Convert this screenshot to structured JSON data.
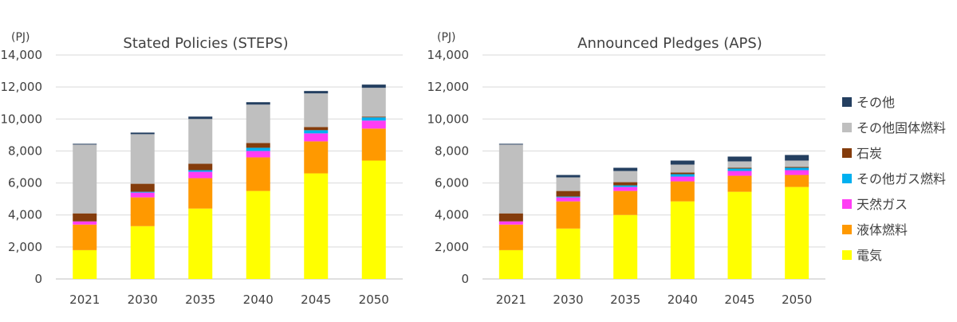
{
  "legend": [
    {
      "name": "その他",
      "color": "#243f60"
    },
    {
      "name": "その他固体燃料",
      "color": "#bfbfbf"
    },
    {
      "name": "石炭",
      "color": "#843c0c"
    },
    {
      "name": "その他ガス燃料",
      "color": "#00b0f0"
    },
    {
      "name": "天然ガス",
      "color": "#ff3df4"
    },
    {
      "name": "液体燃料",
      "color": "#ff9900"
    },
    {
      "name": "電気",
      "color": "#ffff00"
    }
  ],
  "chart_data": [
    {
      "type": "bar",
      "stacked": true,
      "title": "Stated Policies (STEPS)",
      "unit": "(PJ)",
      "categories": [
        "2021",
        "2030",
        "2035",
        "2040",
        "2045",
        "2050"
      ],
      "ylim": [
        0,
        14000
      ],
      "yticks": [
        "0",
        "2,000",
        "4,000",
        "6,000",
        "8,000",
        "10,000",
        "12,000",
        "14,000"
      ],
      "grid": true,
      "series": [
        {
          "name": "電気",
          "color": "#ffff00",
          "values": [
            1800,
            3300,
            4400,
            5500,
            6600,
            7400
          ]
        },
        {
          "name": "液体燃料",
          "color": "#ff9900",
          "values": [
            1600,
            1800,
            1900,
            2100,
            2000,
            2000
          ]
        },
        {
          "name": "天然ガス",
          "color": "#ff3df4",
          "values": [
            200,
            300,
            400,
            400,
            500,
            500
          ]
        },
        {
          "name": "その他ガス燃料",
          "color": "#00b0f0",
          "values": [
            0,
            50,
            100,
            200,
            200,
            200
          ]
        },
        {
          "name": "石炭",
          "color": "#843c0c",
          "values": [
            500,
            500,
            400,
            300,
            200,
            50
          ]
        },
        {
          "name": "その他固体燃料",
          "color": "#bfbfbf",
          "values": [
            4300,
            3100,
            2800,
            2400,
            2100,
            1800
          ]
        },
        {
          "name": "その他",
          "color": "#243f60",
          "values": [
            50,
            100,
            150,
            150,
            150,
            200
          ]
        }
      ]
    },
    {
      "type": "bar",
      "stacked": true,
      "title": "Announced Pledges (APS)",
      "unit": "(PJ)",
      "categories": [
        "2021",
        "2030",
        "2035",
        "2040",
        "2045",
        "2050"
      ],
      "ylim": [
        0,
        14000
      ],
      "yticks": [
        "0",
        "2,000",
        "4,000",
        "6,000",
        "8,000",
        "10,000",
        "12,000",
        "14,000"
      ],
      "grid": true,
      "series": [
        {
          "name": "電気",
          "color": "#ffff00",
          "values": [
            1800,
            3150,
            4000,
            4850,
            5450,
            5750
          ]
        },
        {
          "name": "液体燃料",
          "color": "#ff9900",
          "values": [
            1600,
            1700,
            1500,
            1250,
            1000,
            750
          ]
        },
        {
          "name": "天然ガス",
          "color": "#ff3df4",
          "values": [
            200,
            250,
            250,
            300,
            300,
            300
          ]
        },
        {
          "name": "その他ガス燃料",
          "color": "#00b0f0",
          "values": [
            0,
            50,
            100,
            150,
            150,
            150
          ]
        },
        {
          "name": "石炭",
          "color": "#843c0c",
          "values": [
            500,
            350,
            200,
            100,
            50,
            50
          ]
        },
        {
          "name": "その他固体燃料",
          "color": "#bfbfbf",
          "values": [
            4300,
            850,
            700,
            500,
            400,
            400
          ]
        },
        {
          "name": "その他",
          "color": "#243f60",
          "values": [
            50,
            150,
            200,
            250,
            300,
            350
          ]
        }
      ]
    }
  ]
}
